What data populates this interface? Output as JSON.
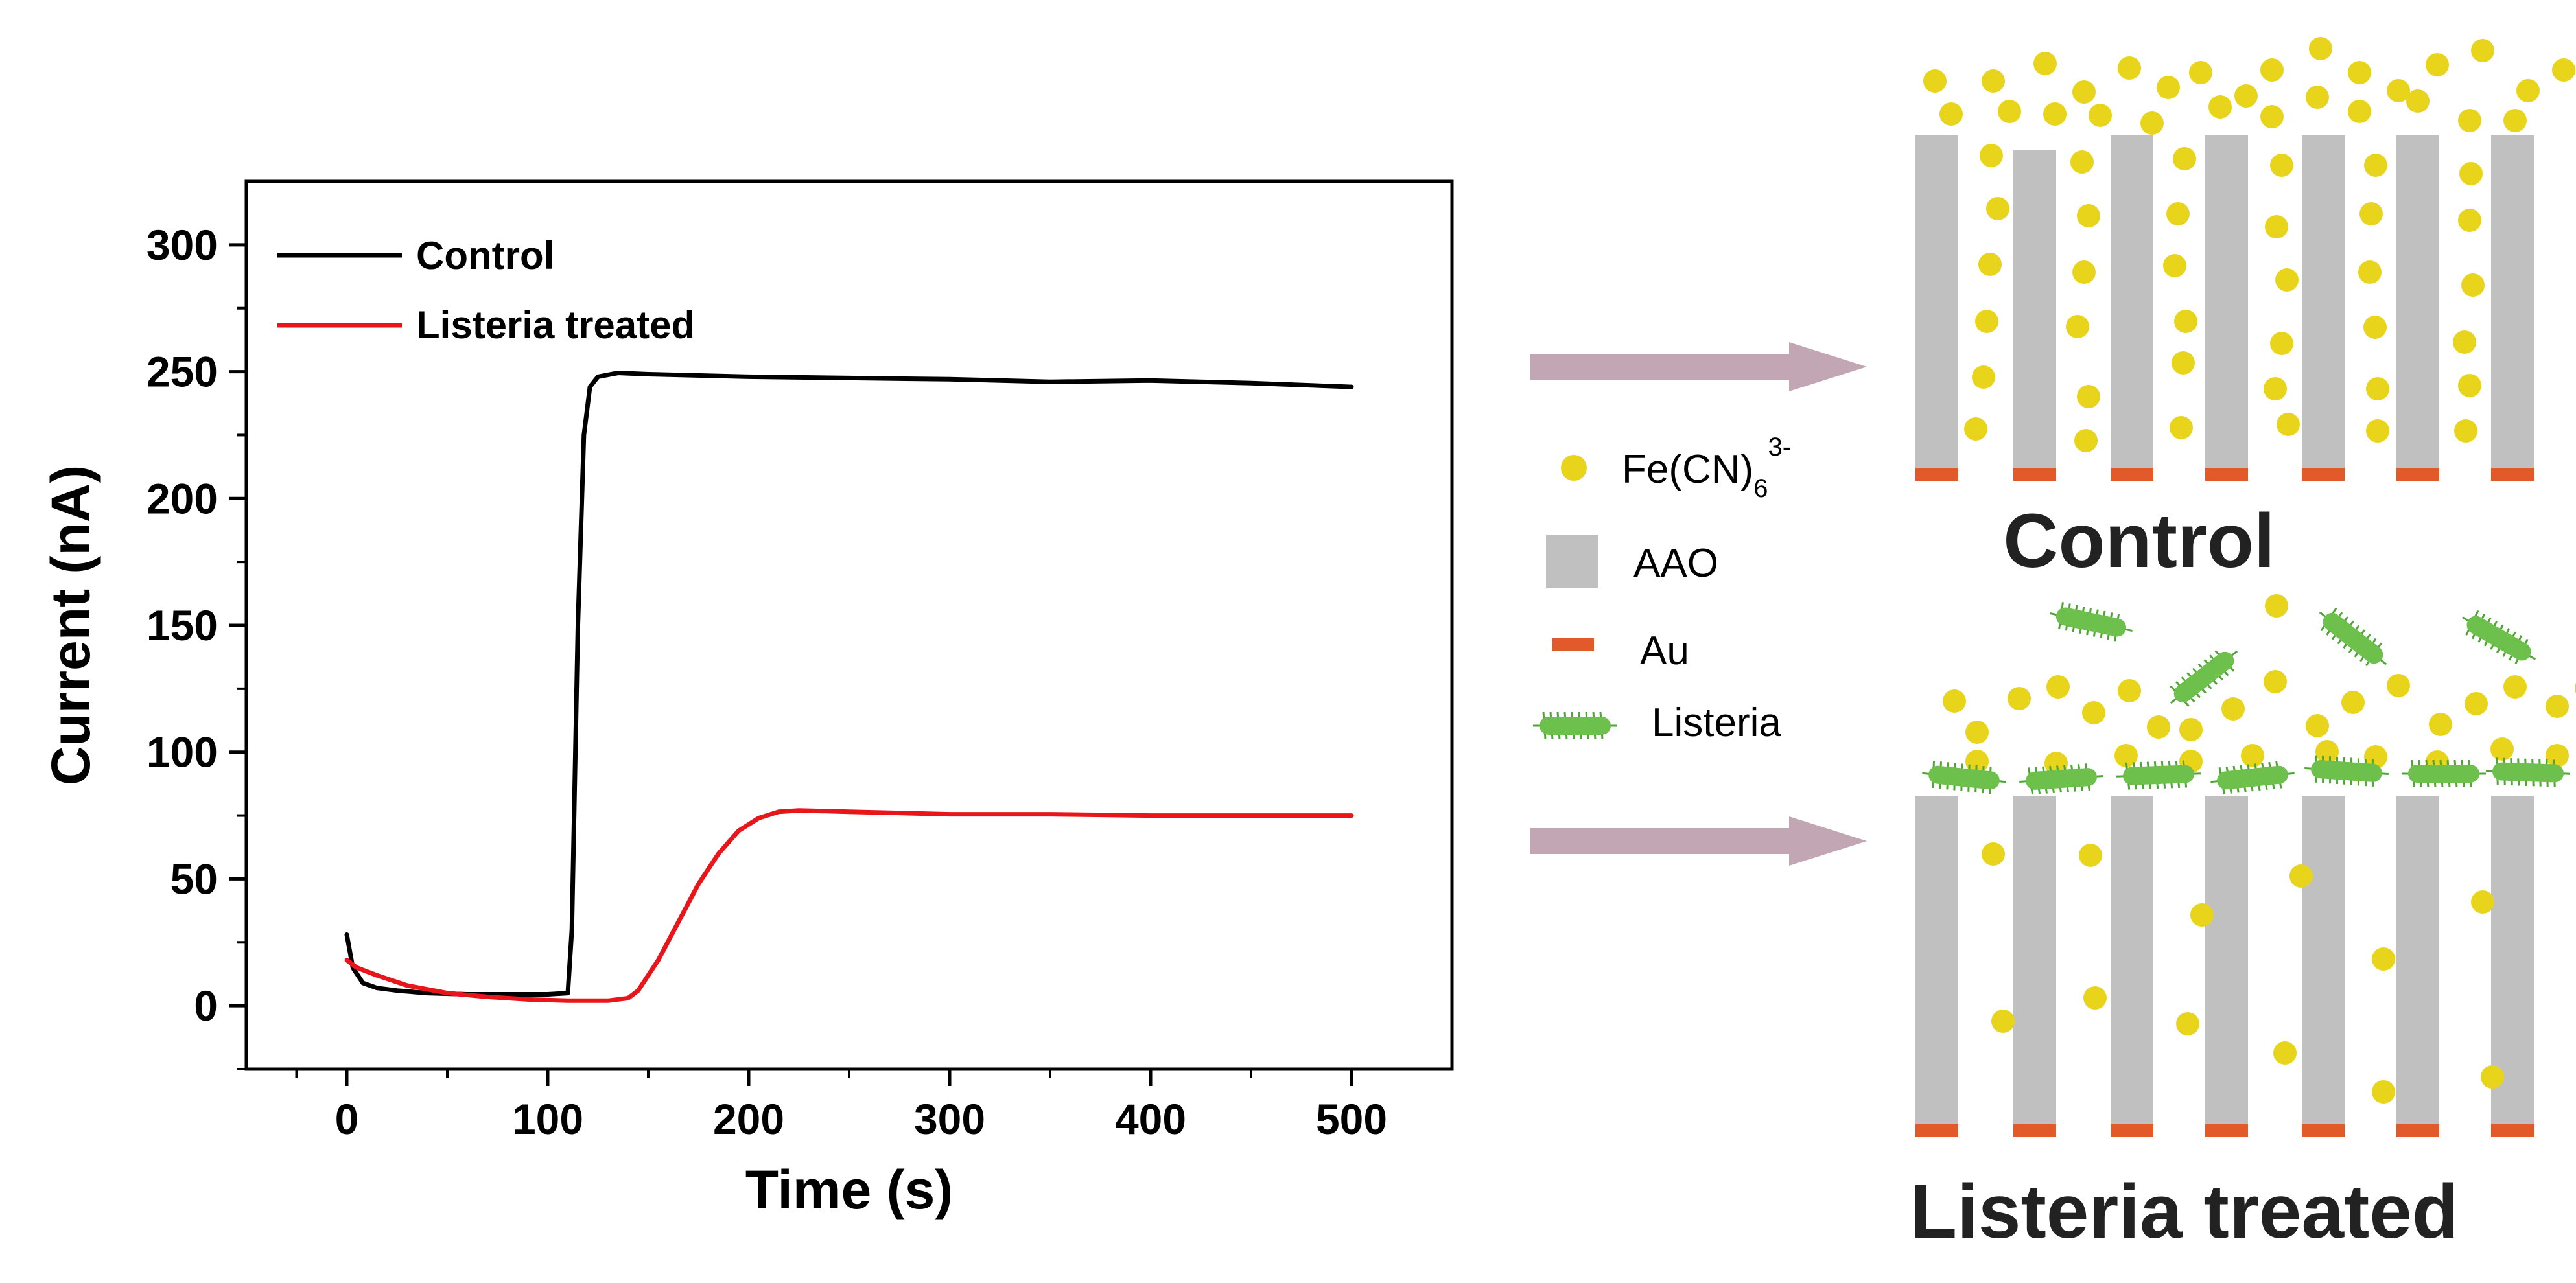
{
  "chart_data": {
    "type": "line",
    "xlabel": "Time (s)",
    "ylabel": "Current (nA)",
    "xlim": [
      -50,
      550
    ],
    "ylim": [
      -25,
      325
    ],
    "xticks": [
      0,
      100,
      200,
      300,
      400,
      500
    ],
    "yticks": [
      0,
      50,
      100,
      150,
      200,
      250,
      300
    ],
    "legend_position": "top-left",
    "grid": false,
    "series": [
      {
        "name": "Control",
        "color": "#000000",
        "points": [
          [
            0,
            28
          ],
          [
            3,
            15
          ],
          [
            8,
            9
          ],
          [
            15,
            7
          ],
          [
            25,
            6
          ],
          [
            40,
            5
          ],
          [
            60,
            4.5
          ],
          [
            80,
            4.5
          ],
          [
            100,
            4.5
          ],
          [
            110,
            5
          ],
          [
            112,
            30
          ],
          [
            115,
            150
          ],
          [
            118,
            225
          ],
          [
            121,
            244
          ],
          [
            125,
            248
          ],
          [
            135,
            249.5
          ],
          [
            150,
            249
          ],
          [
            200,
            248
          ],
          [
            250,
            247.5
          ],
          [
            300,
            247
          ],
          [
            350,
            246
          ],
          [
            400,
            246.5
          ],
          [
            450,
            245.5
          ],
          [
            500,
            244
          ]
        ]
      },
      {
        "name": "Listeria treated",
        "color": "#e8151b",
        "points": [
          [
            0,
            18
          ],
          [
            5,
            15
          ],
          [
            15,
            12
          ],
          [
            30,
            8
          ],
          [
            50,
            5
          ],
          [
            70,
            3.5
          ],
          [
            90,
            2.5
          ],
          [
            110,
            2
          ],
          [
            130,
            2
          ],
          [
            140,
            3
          ],
          [
            145,
            6
          ],
          [
            155,
            18
          ],
          [
            165,
            33
          ],
          [
            175,
            48
          ],
          [
            185,
            60
          ],
          [
            195,
            69
          ],
          [
            205,
            74
          ],
          [
            215,
            76.5
          ],
          [
            225,
            77
          ],
          [
            250,
            76.5
          ],
          [
            300,
            75.5
          ],
          [
            350,
            75.5
          ],
          [
            400,
            75
          ],
          [
            450,
            75
          ],
          [
            500,
            75
          ]
        ]
      }
    ]
  },
  "schematic": {
    "legend": {
      "ferricyanide": "Fe(CN)",
      "ferricyanide_sub": "6",
      "ferricyanide_sup": "3-",
      "aao": "AAO",
      "au": "Au",
      "listeria": "Listeria"
    },
    "control_label": "Control",
    "treated_label": "Listeria treated",
    "colors": {
      "ferricyanide": "#e8d41b",
      "aao": "#c0c0c0",
      "au": "#e35a2a",
      "listeria": "#6dc04b",
      "arrow": "#c2a6b4"
    }
  }
}
